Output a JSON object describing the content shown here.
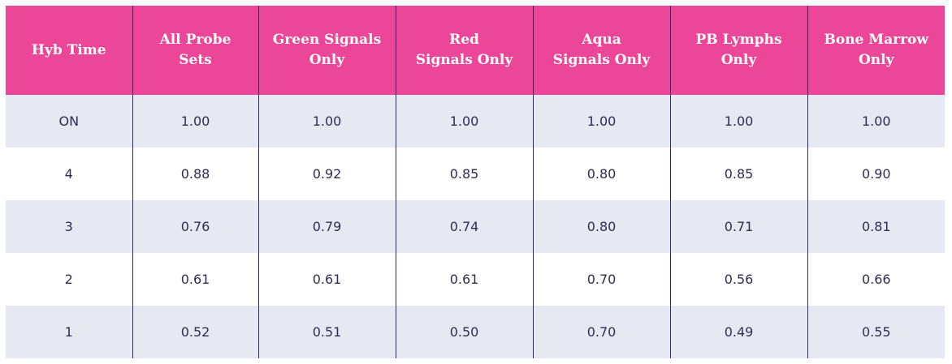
{
  "table": {
    "headers": [
      [
        "Hyb Time"
      ],
      [
        "All Probe",
        "Sets"
      ],
      [
        "Green Signals",
        "Only"
      ],
      [
        "Red",
        "Signals Only"
      ],
      [
        "Aqua",
        "Signals Only"
      ],
      [
        "PB Lymphs",
        "Only"
      ],
      [
        "Bone Marrow",
        "Only"
      ]
    ],
    "rows": [
      [
        "ON",
        "1.00",
        "1.00",
        "1.00",
        "1.00",
        "1.00",
        "1.00"
      ],
      [
        "4",
        "0.88",
        "0.92",
        "0.85",
        "0.80",
        "0.85",
        "0.90"
      ],
      [
        "3",
        "0.76",
        "0.79",
        "0.74",
        "0.80",
        "0.71",
        "0.81"
      ],
      [
        "2",
        "0.61",
        "0.61",
        "0.61",
        "0.70",
        "0.56",
        "0.66"
      ],
      [
        "1",
        "0.52",
        "0.51",
        "0.50",
        "0.70",
        "0.49",
        "0.55"
      ]
    ]
  },
  "colors": {
    "header_background": "#ec4698",
    "header_text": "#ffffff",
    "row_band": "#e6e8f2",
    "cell_text": "#2f2c53",
    "divider": "#2b2a5e"
  }
}
